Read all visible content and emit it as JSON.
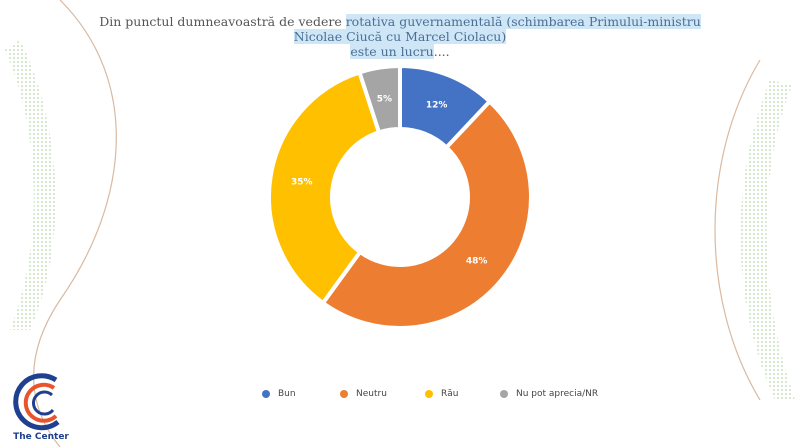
{
  "title": {
    "plain": "Din punctul dumneavoastră de vedere ",
    "highlight1": "rotativa guvernamentală (schimbarea Primului-ministru Nicolae Ciucă cu Marcel Ciolacu)",
    "highlight2": "este un lucru",
    "tail": "...."
  },
  "chart_data": {
    "type": "pie",
    "donut": true,
    "categories": [
      "Bun",
      "Neutru",
      "Rău",
      "Nu pot aprecia/NR"
    ],
    "values": [
      12,
      48,
      35,
      5
    ],
    "labels": [
      "12%",
      "48%",
      "35%",
      "5%"
    ],
    "colors": [
      "#4472C4",
      "#ED7D31",
      "#FFC000",
      "#A5A5A5"
    ],
    "legend_position": "bottom"
  },
  "logo": {
    "text": "The Center"
  }
}
